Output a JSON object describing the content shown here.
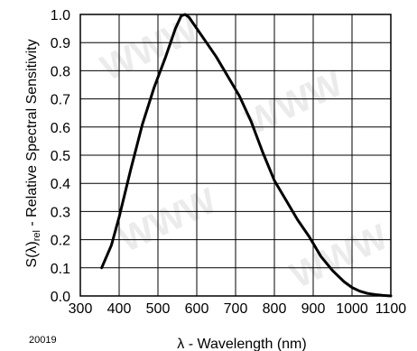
{
  "chart_data": {
    "type": "line",
    "title": "",
    "xlabel_symbol": "λ",
    "xlabel_text": " - Wavelength (nm)",
    "ylabel_main": "S(λ)",
    "ylabel_sub": "rel",
    "ylabel_rest": " - Relative Spectral Sensitivity",
    "figure_code": "20019",
    "xlim": [
      300,
      1100
    ],
    "ylim": [
      0.0,
      1.0
    ],
    "x_ticks": [
      "300",
      "400",
      "500",
      "600",
      "700",
      "800",
      "900",
      "1000",
      "1100"
    ],
    "y_ticks": [
      "0.0",
      "0.1",
      "0.2",
      "0.3",
      "0.4",
      "0.5",
      "0.6",
      "0.7",
      "0.8",
      "0.9",
      "1.0"
    ],
    "grid": true,
    "series": [
      {
        "x": [
          355,
          380,
          400,
          430,
          460,
          490,
          520,
          545,
          560,
          570,
          580,
          600,
          620,
          650,
          680,
          710,
          740,
          770,
          800,
          830,
          860,
          890,
          920,
          950,
          980,
          1000,
          1020,
          1040,
          1060,
          1080,
          1100
        ],
        "y": [
          0.1,
          0.18,
          0.28,
          0.45,
          0.61,
          0.74,
          0.85,
          0.95,
          0.995,
          1.0,
          0.99,
          0.95,
          0.91,
          0.85,
          0.78,
          0.71,
          0.62,
          0.51,
          0.41,
          0.34,
          0.27,
          0.21,
          0.14,
          0.09,
          0.05,
          0.03,
          0.017,
          0.009,
          0.005,
          0.002,
          0.0
        ]
      }
    ]
  }
}
